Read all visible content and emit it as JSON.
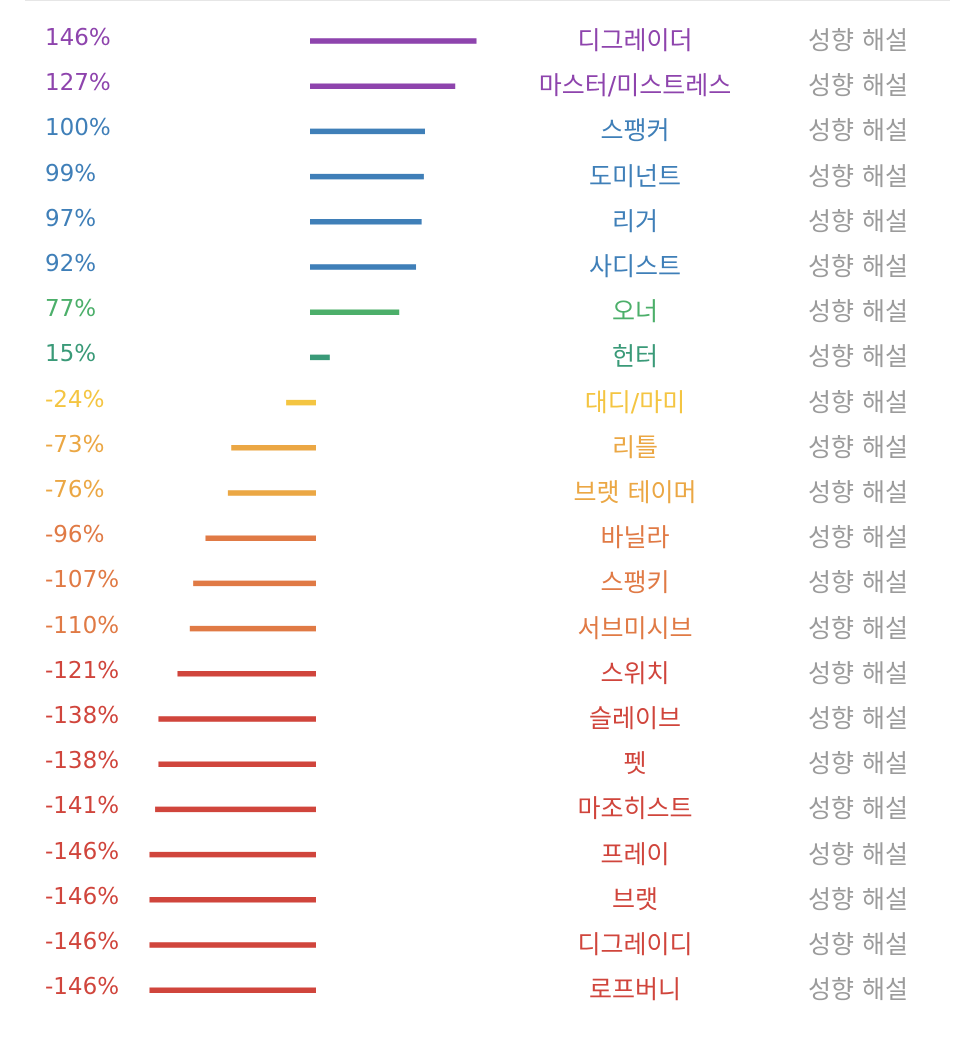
{
  "chart_data": {
    "type": "bar",
    "orientation": "horizontal",
    "categories": [
      "디그레이더",
      "마스터/미스트레스",
      "스팽커",
      "도미넌트",
      "리거",
      "사디스트",
      "오너",
      "헌터",
      "대디/마미",
      "리틀",
      "브랫 테이머",
      "바닐라",
      "스팽키",
      "서브미시브",
      "스위치",
      "슬레이브",
      "펫",
      "마조히스트",
      "프레이",
      "브랫",
      "디그레이디",
      "로프버니"
    ],
    "values": [
      146,
      127,
      100,
      99,
      97,
      92,
      77,
      15,
      -24,
      -73,
      -76,
      -96,
      -107,
      -110,
      -121,
      -138,
      -138,
      -141,
      -146,
      -146,
      -146,
      -146
    ],
    "value_labels": [
      "146%",
      "127%",
      "100%",
      "99%",
      "97%",
      "92%",
      "77%",
      "15%",
      "-24%",
      "-73%",
      "-76%",
      "-96%",
      "-107%",
      "-110%",
      "-121%",
      "-138%",
      "-138%",
      "-141%",
      "-146%",
      "-146%",
      "-146%",
      "-146%"
    ],
    "colors": [
      "#8e44ad",
      "#8e44ad",
      "#3f7fb8",
      "#3f7fb8",
      "#3f7fb8",
      "#3f7fb8",
      "#4caf6a",
      "#3a9a78",
      "#f4c542",
      "#eba744",
      "#eba744",
      "#e07a45",
      "#e07a45",
      "#e07a45",
      "#d0453c",
      "#d0453c",
      "#d0453c",
      "#d0453c",
      "#d0453c",
      "#d0453c",
      "#d0453c",
      "#d0453c"
    ],
    "unit": "%",
    "xlim": [
      -146,
      146
    ],
    "grid": false,
    "legend": "none"
  },
  "row_link_label": "성향 해설"
}
